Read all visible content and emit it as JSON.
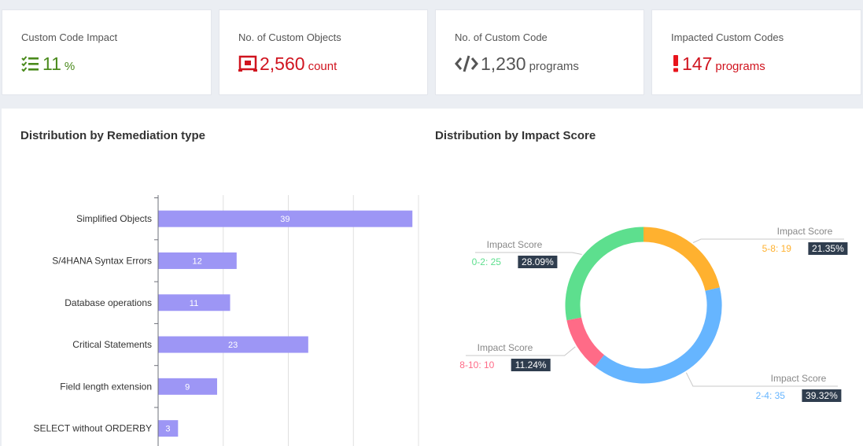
{
  "colors": {
    "green": "#4a8a1c",
    "red": "#d0141f",
    "dark": "#555555",
    "bar": "#9d96f5"
  },
  "kpis": [
    {
      "label": "Custom Code Impact",
      "value": "11",
      "unit": "%",
      "icon": "checklist-icon"
    },
    {
      "label": "No. of Custom Objects",
      "value": "2,560",
      "unit": "count",
      "icon": "objects-icon"
    },
    {
      "label": "No. of Custom Code",
      "value": "1,230",
      "unit": "programs",
      "icon": "code-icon"
    },
    {
      "label": "Impacted Custom Codes",
      "value": "147",
      "unit": "programs",
      "icon": "exclamation-icon"
    }
  ],
  "chart_data": [
    {
      "type": "bar",
      "orientation": "horizontal",
      "title": "Distribution by Remediation type",
      "categories": [
        "Simplified Objects",
        "S/4HANA Syntax Errors",
        "Database operations",
        "Critical Statements",
        "Field length extension",
        "SELECT without ORDERBY"
      ],
      "values": [
        39,
        12,
        11,
        23,
        9,
        3
      ],
      "xlim": [
        0,
        40
      ],
      "grid": true,
      "color": "#9d96f5"
    },
    {
      "type": "pie",
      "variant": "donut",
      "title": "Distribution by Impact Score",
      "label_prefix": "Impact Score",
      "slices": [
        {
          "label": "5-8",
          "value": 19,
          "percent": "21.35%",
          "color": "#ffb12f"
        },
        {
          "label": "2-4",
          "value": 35,
          "percent": "39.32%",
          "color": "#66b5ff"
        },
        {
          "label": "8-10",
          "value": 10,
          "percent": "11.24%",
          "color": "#ff6b87"
        },
        {
          "label": "0-2",
          "value": 25,
          "percent": "28.09%",
          "color": "#5ddf8e"
        }
      ]
    }
  ]
}
